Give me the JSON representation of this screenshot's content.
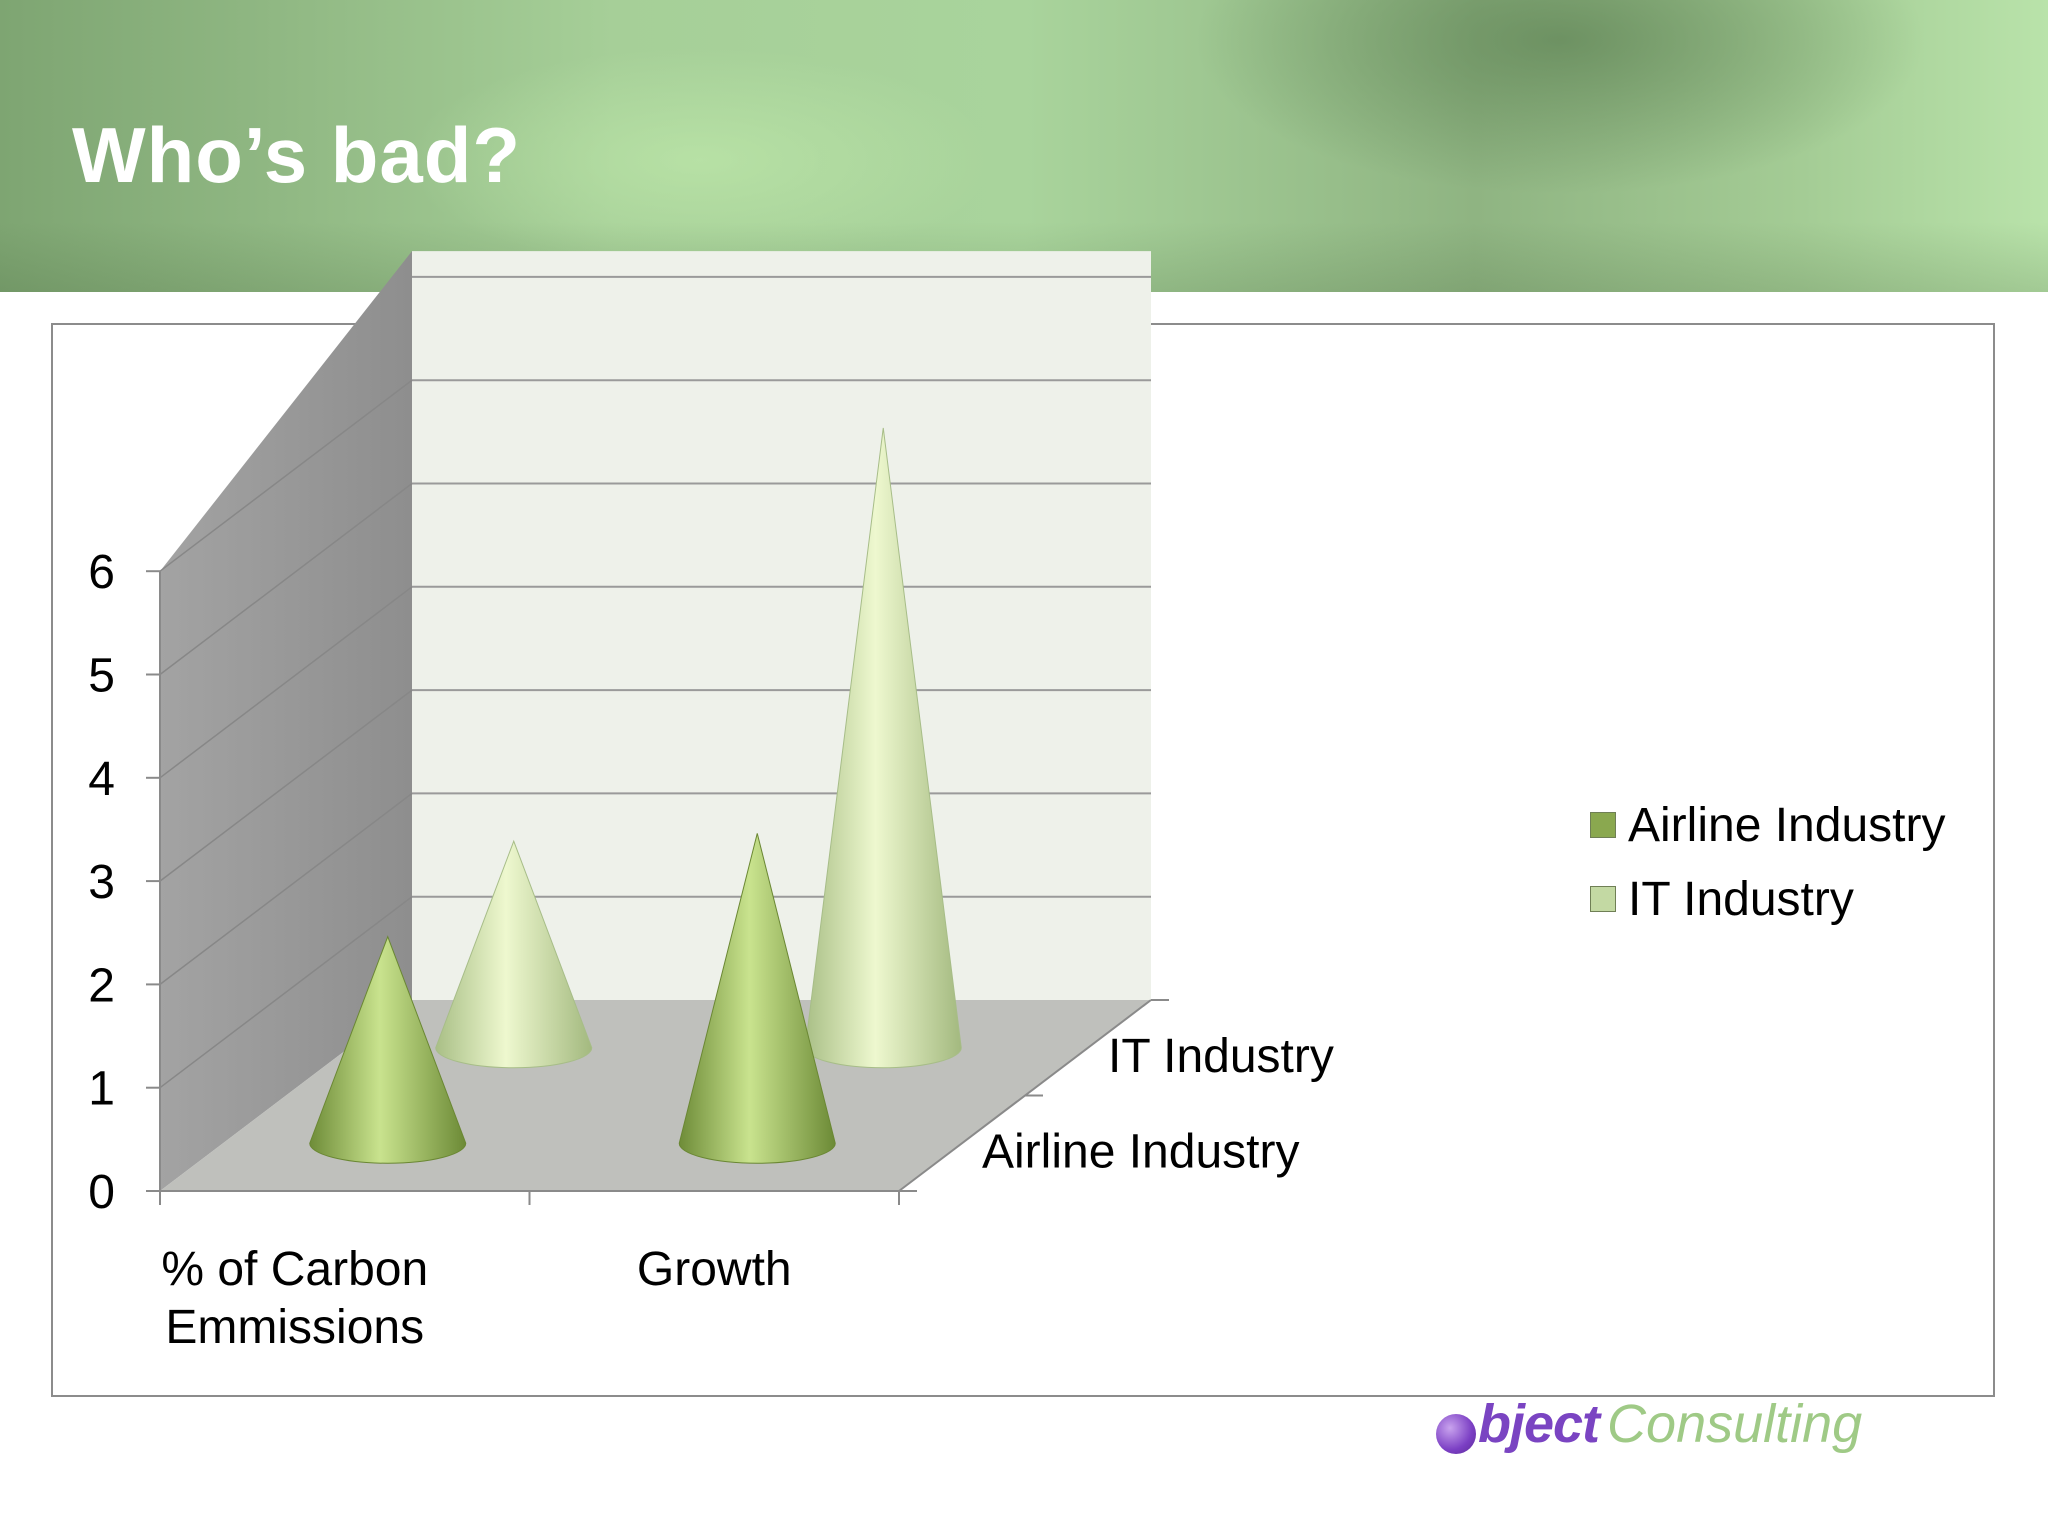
{
  "slide": {
    "title": "Who’s bad?"
  },
  "logo": {
    "word1": "bject",
    "word2": "Consulting"
  },
  "colors": {
    "airline": "#8aa84f",
    "it": "#c3d9a3",
    "back_wall": "#eef1ea",
    "side_wall": "#9b9b9b",
    "floor": "#bfc0bc"
  },
  "chart_data": {
    "type": "bar",
    "style": "3d-cone",
    "title": "",
    "categories": [
      "% of Carbon Emmissions",
      "Growth"
    ],
    "category_lines": [
      [
        "% of Carbon",
        "Emmissions"
      ],
      [
        "Growth"
      ]
    ],
    "series": [
      {
        "name": "Airline Industry",
        "values": [
          2,
          3
        ]
      },
      {
        "name": "IT Industry",
        "values": [
          2,
          6
        ]
      }
    ],
    "y_ticks": [
      "0",
      "1",
      "2",
      "3",
      "4",
      "5",
      "6"
    ],
    "ylim": [
      0,
      6
    ],
    "depth_labels": [
      "Airline Industry",
      "IT Industry"
    ],
    "grid": true,
    "legend": {
      "position": "right",
      "entries": [
        "Airline Industry",
        "IT Industry"
      ]
    }
  }
}
